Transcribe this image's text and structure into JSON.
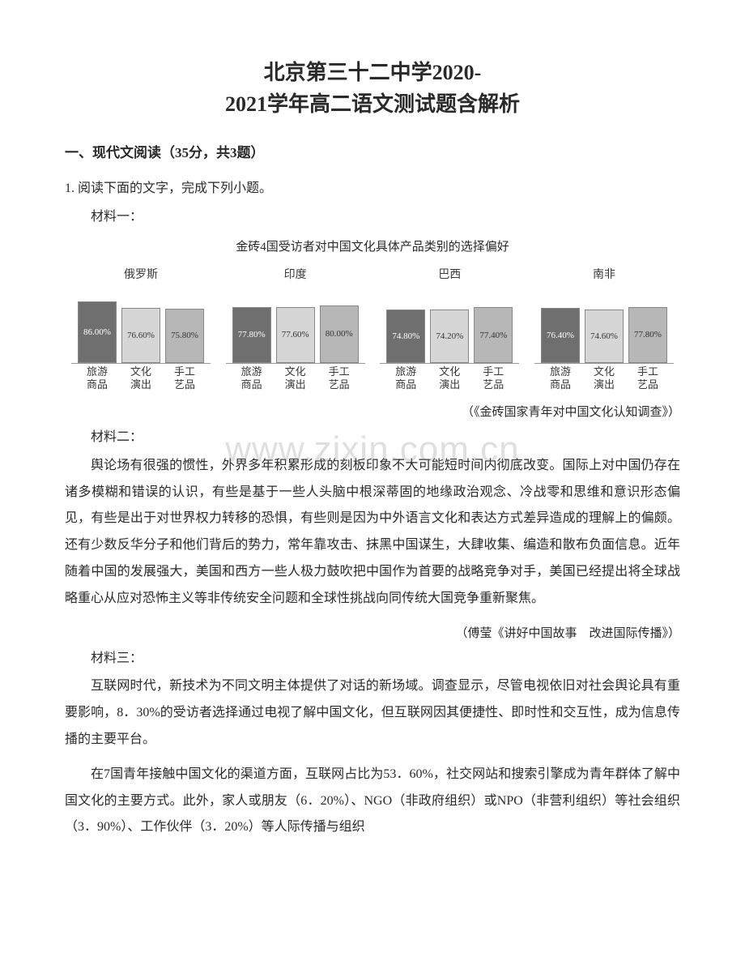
{
  "title_line1": "北京第三十二中学2020-",
  "title_line2": "2021学年高二语文测试题含解析",
  "section_heading": "一、现代文阅读（35分，共3题）",
  "q1_intro": "1. 阅读下面的文字，完成下列小题。",
  "mat1": "材料一：",
  "chart_caption": "金砖4国受访者对中国文化具体产品类别的选择偏好",
  "chart_credit": "（《金砖国家青年对中国文化认知调查》）",
  "charts": {
    "type": "grouped-bar",
    "y_max": 100,
    "category_labels": [
      "旅游商品",
      "文化演出",
      "手工艺品"
    ],
    "bar_colors": [
      "#6f6f6f",
      "#d6d6d6",
      "#b7b7b7"
    ],
    "border_color": "#888888",
    "label_fontsize": 13,
    "value_fontsize": 11,
    "title_fontsize": 14,
    "countries": [
      {
        "title": "俄罗斯",
        "values": [
          86.0,
          76.6,
          75.8
        ],
        "labels": [
          "86.00%",
          "76.60%",
          "75.80%"
        ]
      },
      {
        "title": "印度",
        "values": [
          77.8,
          77.6,
          80.0
        ],
        "labels": [
          "77.80%",
          "77.60%",
          "80.00%"
        ]
      },
      {
        "title": "巴西",
        "values": [
          74.8,
          74.2,
          77.4
        ],
        "labels": [
          "74.80%",
          "74.20%",
          "77.40%"
        ]
      },
      {
        "title": "南非",
        "values": [
          76.4,
          74.6,
          77.8
        ],
        "labels": [
          "76.40%",
          "74.60%",
          "77.80%"
        ]
      }
    ]
  },
  "mat2": "材料二：",
  "mat2_para": "舆论场有很强的惯性，外界多年积累形成的刻板印象不大可能短时间内彻底改变。国际上对中国仍存在诸多模糊和错误的认识，有些是基于一些人头脑中根深蒂固的地缘政治观念、冷战零和思维和意识形态偏见，有些是出于对世界权力转移的恐惧，有些则是因为中外语言文化和表达方式差异造成的理解上的偏颇。还有少数反华分子和他们背后的势力，常年靠攻击、抹黑中国谋生，大肆收集、编造和散布负面信息。近年随着中国的发展强大，美国和西方一些人极力鼓吹把中国作为首要的战略竞争对手，美国已经提出将全球战略重心从应对恐怖主义等非传统安全问题和全球性挑战向同传统大国竞争重新聚焦。",
  "mat2_credit": "（傅莹《讲好中国故事　改进国际传播》）",
  "mat3": "材料三：",
  "mat3_p1": "互联网时代，新技术为不同文明主体提供了对话的新场域。调查显示，尽管电视依旧对社会舆论具有重要影响，8．30%的受访者选择通过电视了解中国文化，但互联网因其便捷性、即时性和交互性，成为信息传播的主要平台。",
  "mat3_p2": "在7国青年接触中国文化的渠道方面，互联网占比为53．60%，社交网站和搜索引擎成为青年群体了解中国文化的主要方式。此外，家人或朋友（6．20%）、NGO（非政府组织）或NPO（非营利组织）等社会组织（3．90%）、工作伙伴（3．20%）等人际传播与组织",
  "watermark": "www.zixin.com.cn"
}
